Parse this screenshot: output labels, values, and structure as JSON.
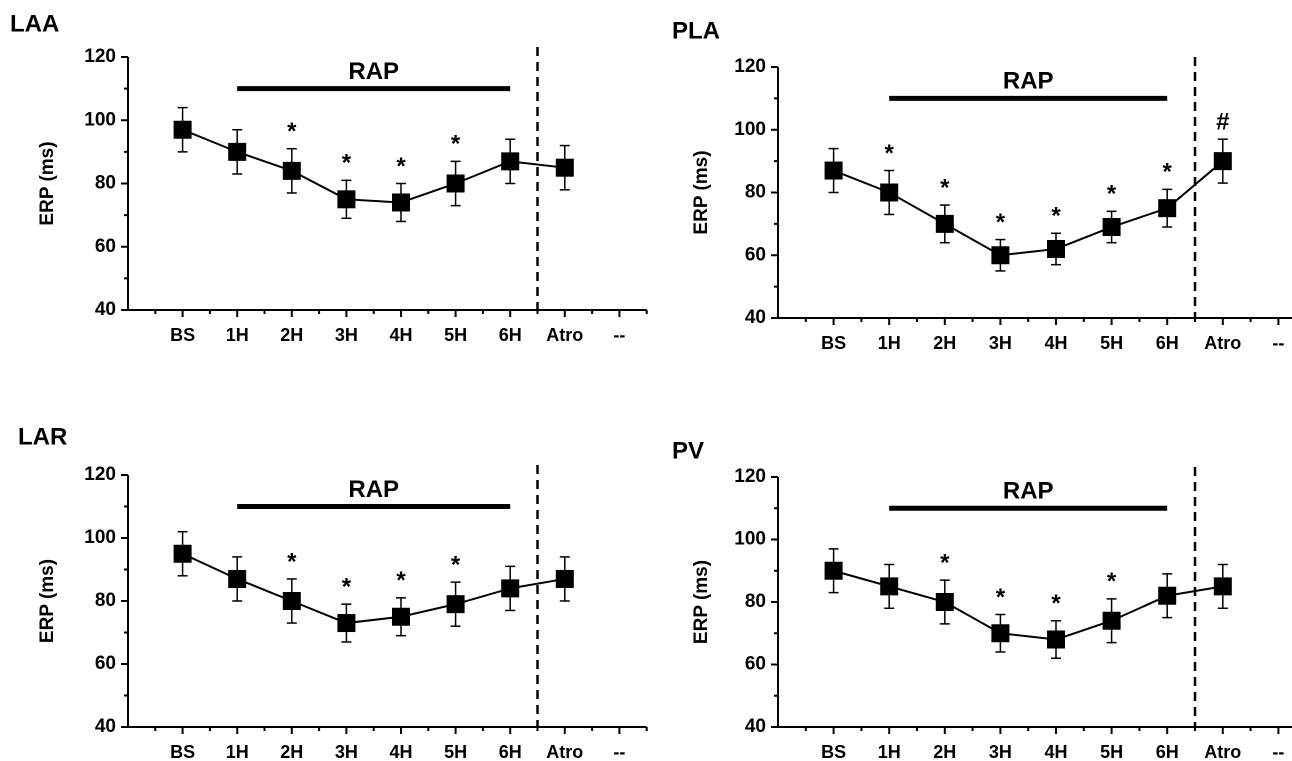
{
  "chart_data": [
    {
      "type": "line",
      "title": "LAA",
      "y_label": "ERP (ms)",
      "color": "#000000",
      "categories": [
        "BS",
        "1H",
        "2H",
        "3H",
        "4H",
        "5H",
        "6H",
        "Atro",
        "--"
      ],
      "values": [
        97,
        90,
        84,
        75,
        74,
        80,
        87,
        85,
        null
      ],
      "errors": [
        7,
        7,
        7,
        6,
        6,
        7,
        7,
        7,
        null
      ],
      "point_labels": [
        null,
        null,
        "*",
        "*",
        "*",
        "*",
        null,
        null,
        null
      ],
      "span_label": "RAP",
      "ylim": [
        40,
        120
      ],
      "yticks": [
        40,
        60,
        80,
        100,
        120
      ]
    },
    {
      "type": "line",
      "title": "PLA",
      "y_label": "ERP (ms)",
      "color": "#000000",
      "categories": [
        "BS",
        "1H",
        "2H",
        "3H",
        "4H",
        "5H",
        "6H",
        "Atro",
        "--"
      ],
      "values": [
        87,
        80,
        70,
        60,
        62,
        69,
        75,
        90,
        null
      ],
      "errors": [
        7,
        7,
        6,
        5,
        5,
        5,
        6,
        7,
        null
      ],
      "point_labels": [
        null,
        "*",
        "*",
        "*",
        "*",
        "*",
        "*",
        "#",
        null
      ],
      "span_label": "RAP",
      "ylim": [
        40,
        120
      ],
      "yticks": [
        40,
        60,
        80,
        100,
        120
      ]
    },
    {
      "type": "line",
      "title": "LAR",
      "y_label": "ERP (ms)",
      "color": "#000000",
      "categories": [
        "BS",
        "1H",
        "2H",
        "3H",
        "4H",
        "5H",
        "6H",
        "Atro",
        "--"
      ],
      "values": [
        95,
        87,
        80,
        73,
        75,
        79,
        84,
        87,
        null
      ],
      "errors": [
        7,
        7,
        7,
        6,
        6,
        7,
        7,
        7,
        null
      ],
      "point_labels": [
        null,
        null,
        "*",
        "*",
        "*",
        "*",
        null,
        null,
        null
      ],
      "span_label": "RAP",
      "ylim": [
        40,
        120
      ],
      "yticks": [
        40,
        60,
        80,
        100,
        120
      ]
    },
    {
      "type": "line",
      "title": "PV",
      "y_label": "ERP (ms)",
      "color": "#000000",
      "categories": [
        "BS",
        "1H",
        "2H",
        "3H",
        "4H",
        "5H",
        "6H",
        "Atro",
        "--"
      ],
      "values": [
        90,
        85,
        80,
        70,
        68,
        74,
        82,
        85,
        null
      ],
      "errors": [
        7,
        7,
        7,
        6,
        6,
        7,
        7,
        7,
        null
      ],
      "point_labels": [
        null,
        null,
        "*",
        "*",
        "*",
        "*",
        null,
        null,
        null
      ],
      "span_label": "RAP",
      "ylim": [
        40,
        120
      ],
      "yticks": [
        40,
        60,
        80,
        100,
        120
      ]
    }
  ]
}
